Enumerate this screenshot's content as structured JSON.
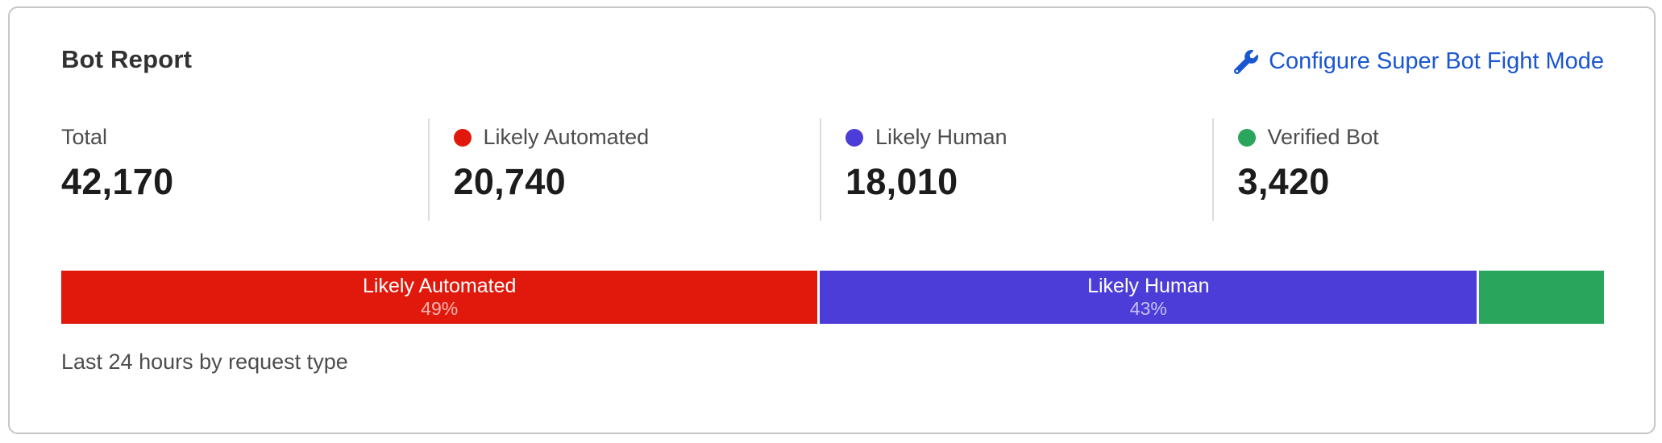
{
  "card": {
    "title": "Bot Report",
    "configure_link": {
      "label": "Configure Super Bot Fight Mode",
      "icon": "wrench-icon",
      "color": "#1a56d2"
    },
    "caption": "Last 24 hours by request type"
  },
  "stats": [
    {
      "label": "Total",
      "value": "42,170",
      "dot_color": null
    },
    {
      "label": "Likely Automated",
      "value": "20,740",
      "dot_color": "#e0190c"
    },
    {
      "label": "Likely Human",
      "value": "18,010",
      "dot_color": "#4d3dd8"
    },
    {
      "label": "Verified Bot",
      "value": "3,420",
      "dot_color": "#29a55c"
    }
  ],
  "chart_data": {
    "type": "bar",
    "subtype": "horizontal-stacked-single",
    "title": "Bot Report",
    "caption": "Last 24 hours by request type",
    "total": 42170,
    "legend_position": "top",
    "segments": [
      {
        "name": "Likely Automated",
        "value": 20740,
        "percent_label": "49%",
        "color": "#e0190c",
        "show_label": true
      },
      {
        "name": "Likely Human",
        "value": 18010,
        "percent_label": "43%",
        "color": "#4d3dd8",
        "show_label": true
      },
      {
        "name": "Verified Bot",
        "value": 3420,
        "percent_label": "",
        "color": "#29a55c",
        "show_label": false
      }
    ]
  }
}
